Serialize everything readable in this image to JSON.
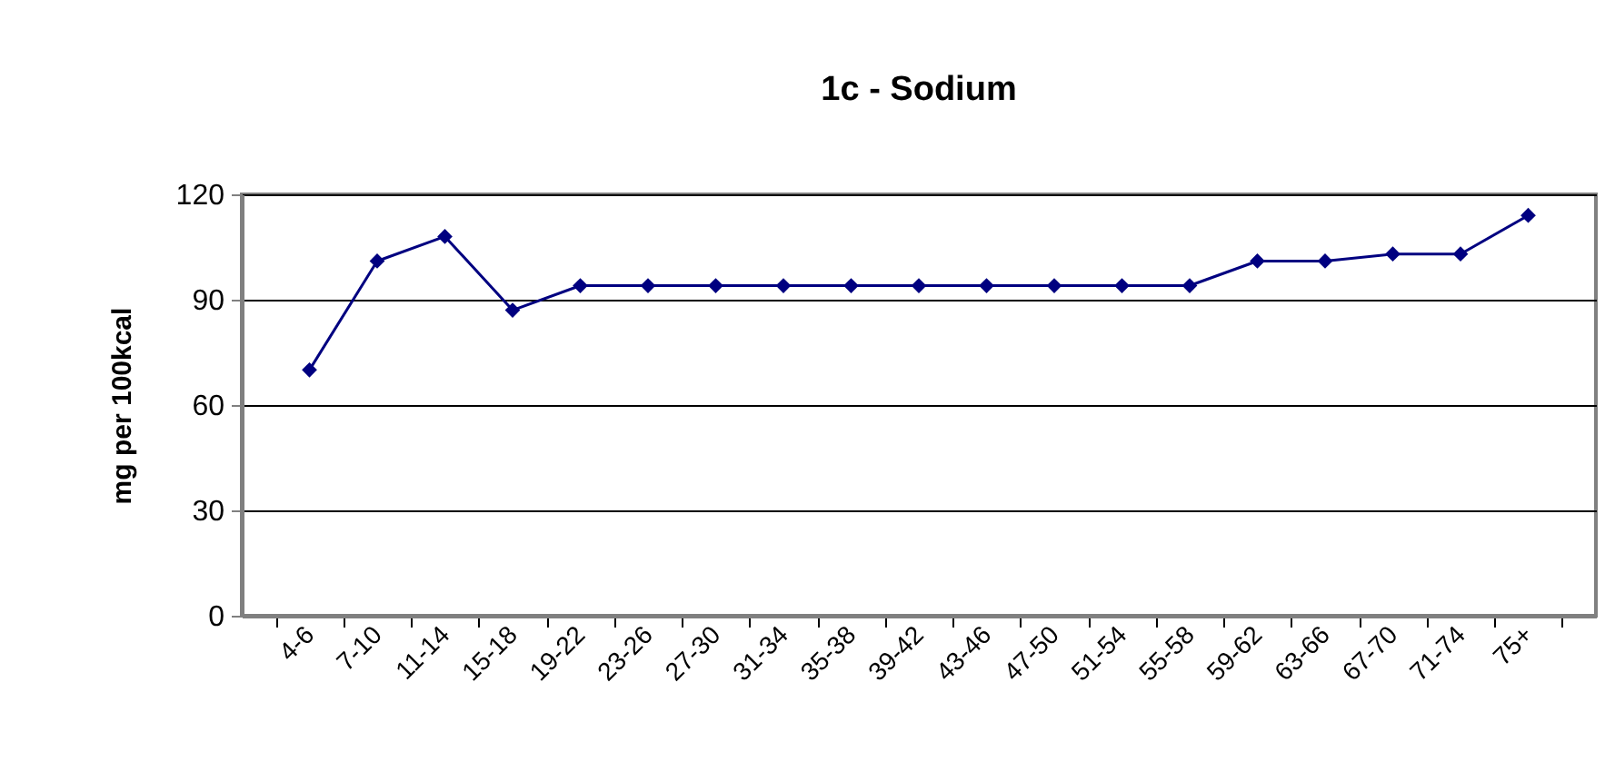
{
  "chart_data": {
    "type": "line",
    "title": "1c - Sodium",
    "ylabel": "mg per 100kcal",
    "categories": [
      "4-6",
      "7-10",
      "11-14",
      "15-18",
      "19-22",
      "23-26",
      "27-30",
      "31-34",
      "35-38",
      "39-42",
      "43-46",
      "47-50",
      "51-54",
      "55-58",
      "59-62",
      "63-66",
      "67-70",
      "71-74",
      "75+"
    ],
    "series": [
      {
        "color": "#000080",
        "values": [
          70,
          101,
          108,
          87,
          94,
          94,
          94,
          94,
          94,
          94,
          94,
          94,
          94,
          94,
          101,
          101,
          103,
          103,
          114
        ]
      }
    ],
    "ylim": [
      0,
      120
    ],
    "yticks": [
      0,
      30,
      60,
      90,
      120
    ],
    "grid": "y",
    "marker": "diamond",
    "line_style": "solid",
    "legend": false
  }
}
